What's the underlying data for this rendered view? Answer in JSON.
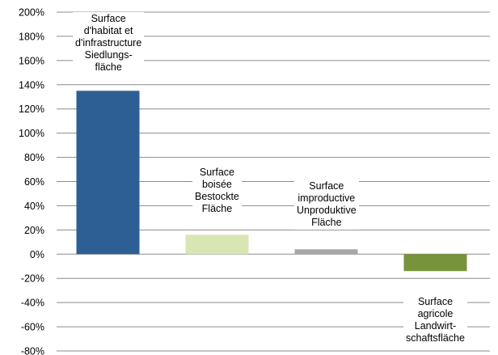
{
  "chart_data": {
    "type": "bar",
    "categories": [
      [
        "Surface",
        "d'habitat et",
        "d'infrastructure",
        "Siedlungs-",
        "fläche"
      ],
      [
        "Surface",
        "boisée",
        "Bestockte",
        "Fläche"
      ],
      [
        "Surface",
        "improductive",
        "Unproduktive",
        "Fläche"
      ],
      [
        "Surface",
        "agricole",
        "Landwirt-",
        "schaftsfläche"
      ]
    ],
    "values": [
      135,
      16,
      4,
      -14
    ],
    "colors": [
      "#2e5f94",
      "#d8e6b4",
      "#a6a6a6",
      "#77933c"
    ],
    "ylim": [
      -80,
      200
    ],
    "yticks": [
      200,
      180,
      160,
      140,
      120,
      100,
      80,
      60,
      40,
      20,
      0,
      -20,
      -40,
      -60,
      -80
    ],
    "ytick_labels": [
      "200%",
      "180%",
      "160%",
      "140%",
      "120%",
      "100%",
      "80%",
      "60%",
      "40%",
      "20%",
      "0%",
      "-20%",
      "-40%",
      "-60%",
      "-80%"
    ],
    "grid": true,
    "legend": "none"
  }
}
